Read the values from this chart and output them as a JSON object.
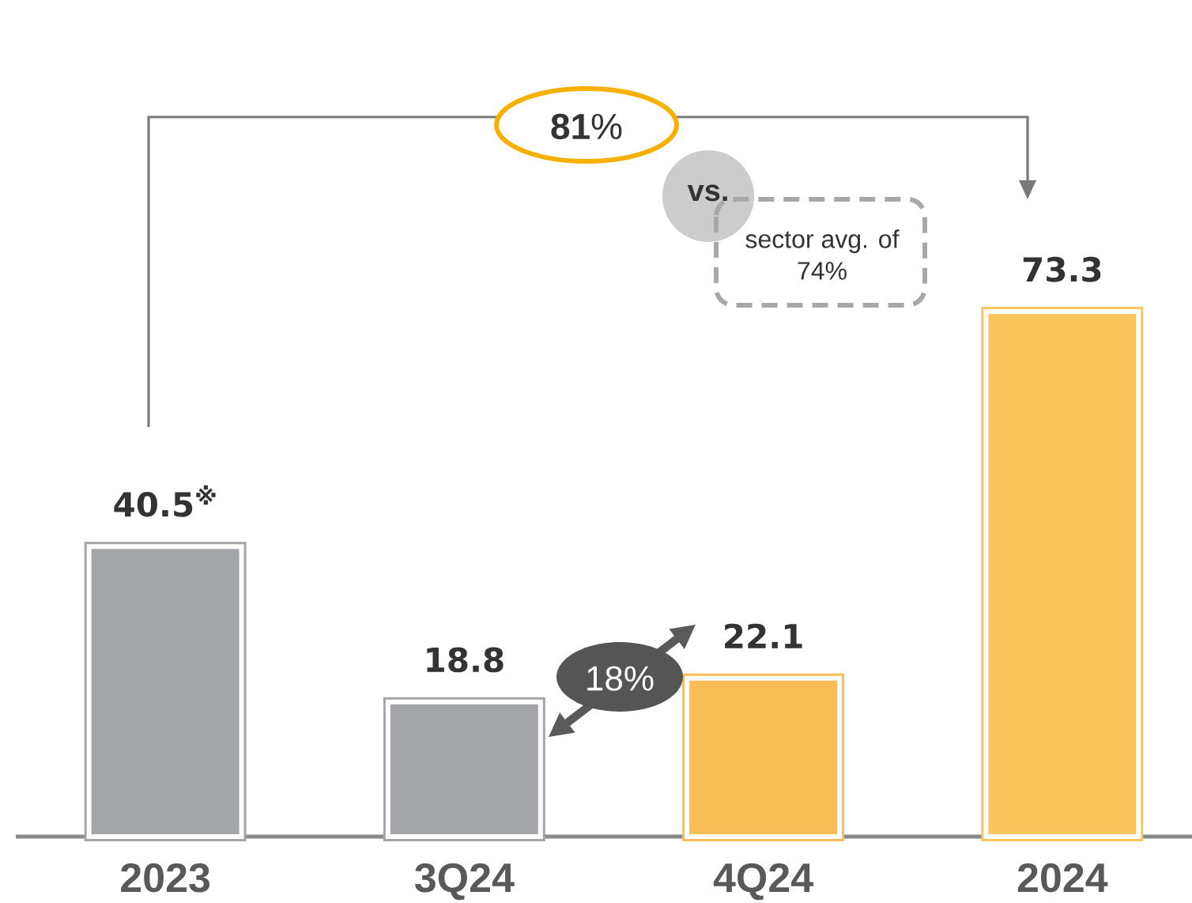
{
  "chart_data": {
    "type": "bar",
    "categories": [
      "2023",
      "3Q24",
      "4Q24",
      "2024"
    ],
    "values": [
      40.5,
      18.8,
      22.1,
      73.3
    ],
    "colors": [
      "#a4a5a8",
      "#a4a5a8",
      "#f8bd57",
      "#f9c55c"
    ],
    "value_labels": [
      "40.5$^{※}$",
      "18.8",
      "22.1",
      "73.3"
    ],
    "annotations": [
      "**81**%",
      "vs.",
      "sector avg. of 74%",
      "18%"
    ]
  }
}
